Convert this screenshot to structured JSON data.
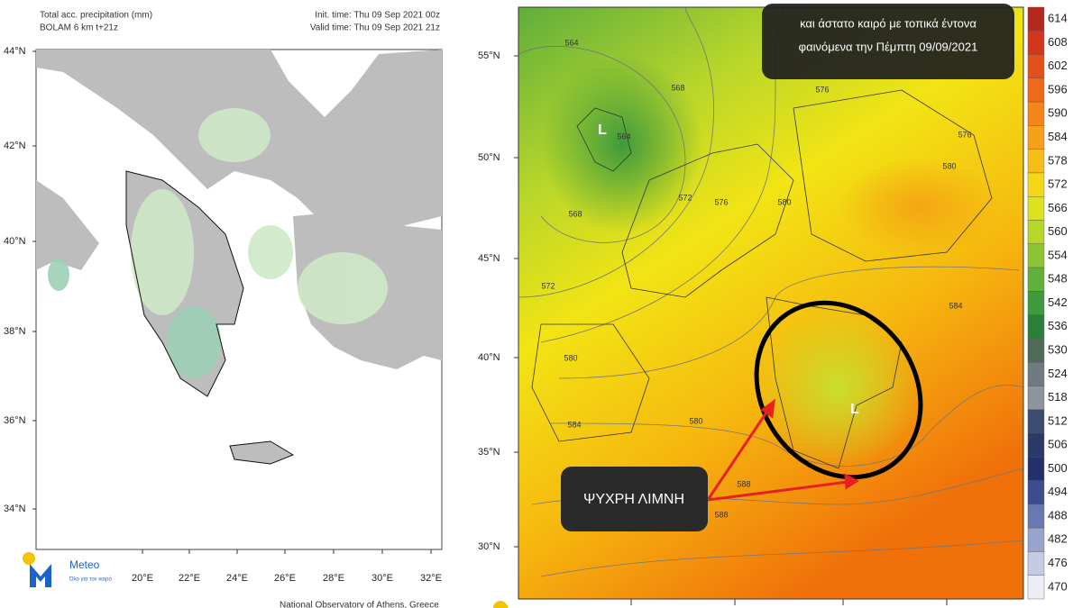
{
  "left_map": {
    "title": "Total acc. precipitation (mm)",
    "model": "BOLAM 6 km t+21z",
    "init_time": "Init. time: Thu 09 Sep 2021 00z",
    "valid_time": "Valid time: Thu 09 Sep 2021 21z",
    "lat_labels": [
      "44°N",
      "42°N",
      "40°N",
      "38°N",
      "36°N",
      "34°N"
    ],
    "lon_labels": [
      "20°E",
      "22°E",
      "24°E",
      "26°E",
      "28°E",
      "30°E",
      "32°E"
    ],
    "logo": "Meteo",
    "logo_tagline": "Όλο για τον καιρό",
    "credit": "National Observatory of Athens, Greece"
  },
  "right_map": {
    "caption_line1": "και άστατο καιρό με τοπικά έντονα",
    "caption_line2": "φαινόμενα την Πέμπτη 09/09/2021",
    "lat_labels": [
      "55°N",
      "50°N",
      "45°N",
      "40°N",
      "35°N",
      "30°N"
    ],
    "contour_labels": [
      "564",
      "564",
      "568",
      "568",
      "572",
      "572",
      "576",
      "576",
      "576",
      "580",
      "580",
      "580",
      "580",
      "584",
      "584",
      "588",
      "588"
    ],
    "low_marks": [
      "L",
      "L"
    ],
    "annotation": "ΨΥΧΡΗ ΛΙΜΝΗ",
    "colorbar": [
      614,
      608,
      602,
      596,
      590,
      584,
      578,
      572,
      566,
      560,
      554,
      548,
      542,
      536,
      530,
      524,
      518,
      512,
      506,
      500,
      494,
      488,
      482,
      476,
      470
    ]
  }
}
